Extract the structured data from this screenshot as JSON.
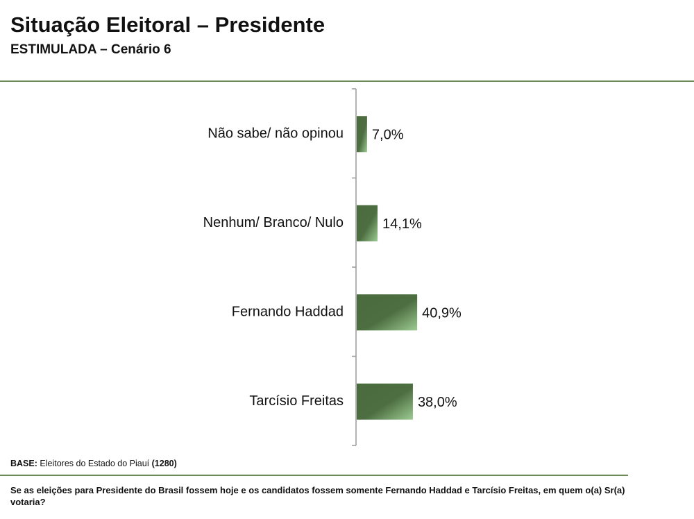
{
  "header": {
    "title": "Situação Eleitoral – Presidente",
    "subtitle": "ESTIMULADA – Cenário 6"
  },
  "footer": {
    "base_label": "BASE:",
    "base_text": "Eleitores do Estado do Piauí",
    "base_count": "(1280)",
    "question": "Se as eleições para Presidente do Brasil fossem hoje e os candidatos fossem somente Fernando Haddad e Tarcísio Freitas, em quem o(a) Sr(a) votaria?"
  },
  "colors": {
    "bar_dark": "#4a6b3e",
    "bar_light": "#9ccb92",
    "rule": "#6e8c5a"
  },
  "chart_data": {
    "type": "bar",
    "orientation": "horizontal",
    "categories": [
      "Não sabe/ não opinou",
      "Nenhum/ Branco/ Nulo",
      "Fernando Haddad",
      "Tarcísio Freitas"
    ],
    "values": [
      7.0,
      14.1,
      40.9,
      38.0
    ],
    "labels": [
      "7,0%",
      "14,1%",
      "40,9%",
      "38,0%"
    ],
    "unit": "%",
    "xlim": [
      0,
      100
    ],
    "grid": false,
    "legend": "none"
  }
}
